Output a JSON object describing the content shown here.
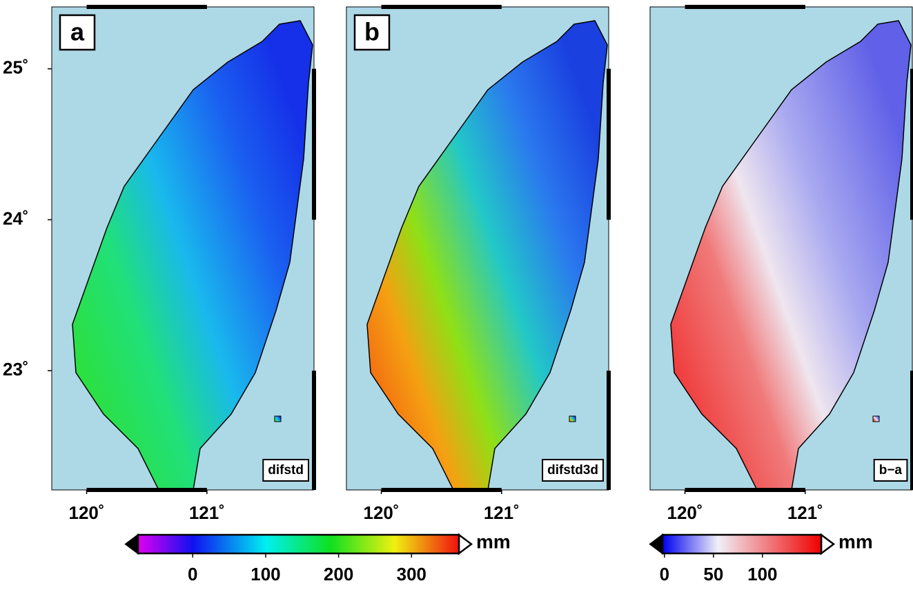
{
  "panels": [
    {
      "label": "a",
      "name": "difstd"
    },
    {
      "label": "b",
      "name": "difstd3d"
    },
    {
      "name": "b−a"
    }
  ],
  "lon_range": [
    119.71,
    121.89
  ],
  "lat_range": [
    22.21,
    25.41
  ],
  "lat_ticks": [
    {
      "value": 25,
      "label": "25˚"
    },
    {
      "value": 24,
      "label": "24˚"
    },
    {
      "value": 23,
      "label": "23˚"
    }
  ],
  "lon_ticks": [
    {
      "value": 120,
      "label": "120˚"
    },
    {
      "value": 121,
      "label": "121˚"
    }
  ],
  "colorbars": [
    {
      "range": [
        -75,
        365
      ],
      "ticks": [
        0,
        100,
        200,
        300
      ],
      "unit": "mm"
    },
    {
      "range": [
        -2,
        160
      ],
      "ticks": [
        0,
        50,
        100
      ],
      "unit": "mm"
    }
  ]
}
